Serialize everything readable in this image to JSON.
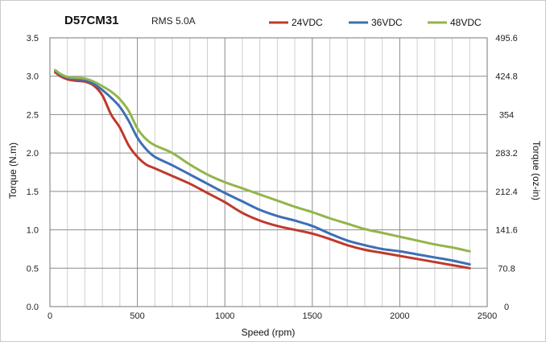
{
  "chart_data": {
    "type": "line",
    "title": "D57CM31",
    "subtitle": "RMS 5.0A",
    "xlabel": "Speed (rpm)",
    "ylabel": "Torque (N.m)",
    "y2label": "Torque (oz-in)",
    "xlim": [
      0,
      2500
    ],
    "ylim": [
      0,
      3.5
    ],
    "xticks": [
      "0",
      "500",
      "1000",
      "1500",
      "2000",
      "2500"
    ],
    "yticks": [
      "0.0",
      "0.5",
      "1.0",
      "1.5",
      "2.0",
      "2.5",
      "3.0",
      "3.5"
    ],
    "y2ticks": [
      "0",
      "70.8",
      "141.6",
      "212.4",
      "283.2",
      "354",
      "424.8",
      "495.6"
    ],
    "grid": true,
    "legend": "top-right",
    "series": [
      {
        "name": "24VDC",
        "color": "#c0392b",
        "x": [
          30,
          60,
          100,
          150,
          200,
          250,
          300,
          350,
          400,
          450,
          500,
          550,
          600,
          700,
          800,
          900,
          1000,
          1100,
          1200,
          1300,
          1400,
          1500,
          1600,
          1700,
          1800,
          1900,
          2000,
          2100,
          2200,
          2300,
          2400
        ],
        "y": [
          3.05,
          3.0,
          2.96,
          2.94,
          2.93,
          2.88,
          2.75,
          2.5,
          2.33,
          2.1,
          1.95,
          1.85,
          1.8,
          1.7,
          1.6,
          1.48,
          1.36,
          1.22,
          1.12,
          1.05,
          1.0,
          0.95,
          0.88,
          0.8,
          0.74,
          0.7,
          0.66,
          0.62,
          0.58,
          0.54,
          0.5
        ]
      },
      {
        "name": "36VDC",
        "color": "#3d6fb5",
        "x": [
          30,
          60,
          100,
          150,
          200,
          250,
          300,
          350,
          400,
          450,
          500,
          550,
          600,
          700,
          800,
          900,
          1000,
          1100,
          1200,
          1300,
          1400,
          1500,
          1600,
          1700,
          1800,
          1900,
          2000,
          2100,
          2200,
          2300,
          2400
        ],
        "y": [
          3.07,
          3.02,
          2.98,
          2.96,
          2.95,
          2.9,
          2.82,
          2.72,
          2.6,
          2.42,
          2.2,
          2.05,
          1.95,
          1.84,
          1.72,
          1.6,
          1.48,
          1.37,
          1.26,
          1.18,
          1.12,
          1.05,
          0.95,
          0.86,
          0.8,
          0.75,
          0.72,
          0.68,
          0.64,
          0.6,
          0.55
        ]
      },
      {
        "name": "48VDC",
        "color": "#93b54a",
        "x": [
          30,
          60,
          100,
          150,
          200,
          250,
          300,
          350,
          400,
          450,
          500,
          550,
          600,
          700,
          800,
          900,
          1000,
          1100,
          1200,
          1300,
          1400,
          1500,
          1600,
          1700,
          1800,
          1900,
          2000,
          2100,
          2200,
          2300,
          2400
        ],
        "y": [
          3.08,
          3.03,
          2.99,
          2.98,
          2.97,
          2.93,
          2.87,
          2.8,
          2.7,
          2.55,
          2.32,
          2.18,
          2.1,
          2.0,
          1.85,
          1.72,
          1.62,
          1.54,
          1.46,
          1.38,
          1.3,
          1.23,
          1.15,
          1.08,
          1.01,
          0.96,
          0.91,
          0.86,
          0.81,
          0.77,
          0.72
        ]
      }
    ]
  }
}
